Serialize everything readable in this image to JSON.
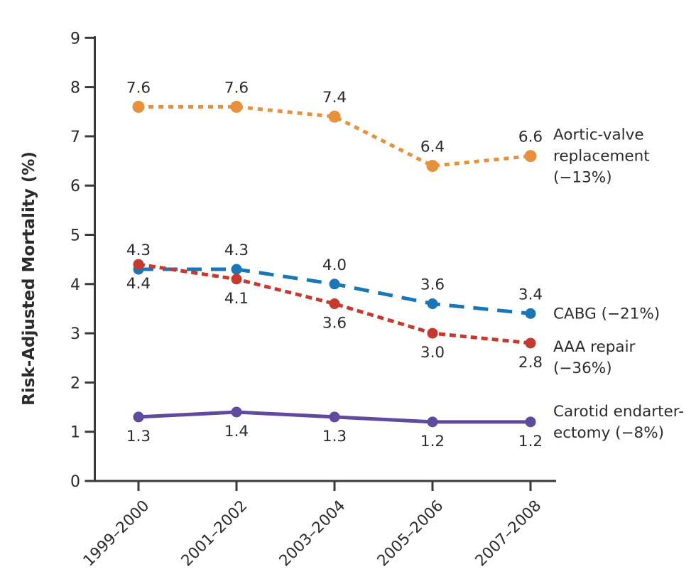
{
  "chart_data": {
    "type": "line",
    "title": "",
    "xlabel": "",
    "ylabel": "Risk-Adjusted Mortality (%)",
    "ylim": [
      0,
      9
    ],
    "yticks": [
      "0",
      "1",
      "2",
      "3",
      "4",
      "5",
      "6",
      "7",
      "8",
      "9"
    ],
    "grid": false,
    "legend_position": "right",
    "categories": [
      "1999–2000",
      "2001–2002",
      "2003–2004",
      "2005–2006",
      "2007–2008"
    ],
    "series": [
      {
        "name": "Aortic-valve replacement",
        "legend_label": "Aortic-valve\nreplacement\n(−13%)",
        "percent_change": "−13%",
        "values": [
          7.6,
          7.6,
          7.4,
          6.4,
          6.6
        ],
        "value_labels": [
          "7.6",
          "7.6",
          "7.4",
          "6.4",
          "6.6"
        ],
        "value_label_side": "above",
        "color": "#E8913C",
        "line_style": "dotted"
      },
      {
        "name": "CABG",
        "legend_label": "CABG (−21%)",
        "percent_change": "−21%",
        "values": [
          4.3,
          4.3,
          4.0,
          3.6,
          3.4
        ],
        "value_labels": [
          "4.3",
          "4.3",
          "4.0",
          "3.6",
          "3.4"
        ],
        "value_label_side": "above",
        "color": "#1B76B8",
        "line_style": "dashed"
      },
      {
        "name": "AAA repair",
        "legend_label": "AAA repair\n(−36%)",
        "percent_change": "−36%",
        "values": [
          4.4,
          4.1,
          3.6,
          3.0,
          2.8
        ],
        "value_labels": [
          "4.4",
          "4.1",
          "3.6",
          "3.0",
          "2.8"
        ],
        "value_label_side": "below",
        "color": "#C5392F",
        "line_style": "dotted"
      },
      {
        "name": "Carotid endarterectomy",
        "legend_label": "Carotid endarter-\nectomy (−8%)",
        "percent_change": "−8%",
        "values": [
          1.3,
          1.4,
          1.3,
          1.2,
          1.2
        ],
        "value_labels": [
          "1.3",
          "1.4",
          "1.3",
          "1.2",
          "1.2"
        ],
        "value_label_side": "below",
        "color": "#5F4A9E",
        "line_style": "solid"
      }
    ],
    "colors": {
      "axis": "#3A3A3A",
      "text": "#2B2B2B"
    }
  }
}
